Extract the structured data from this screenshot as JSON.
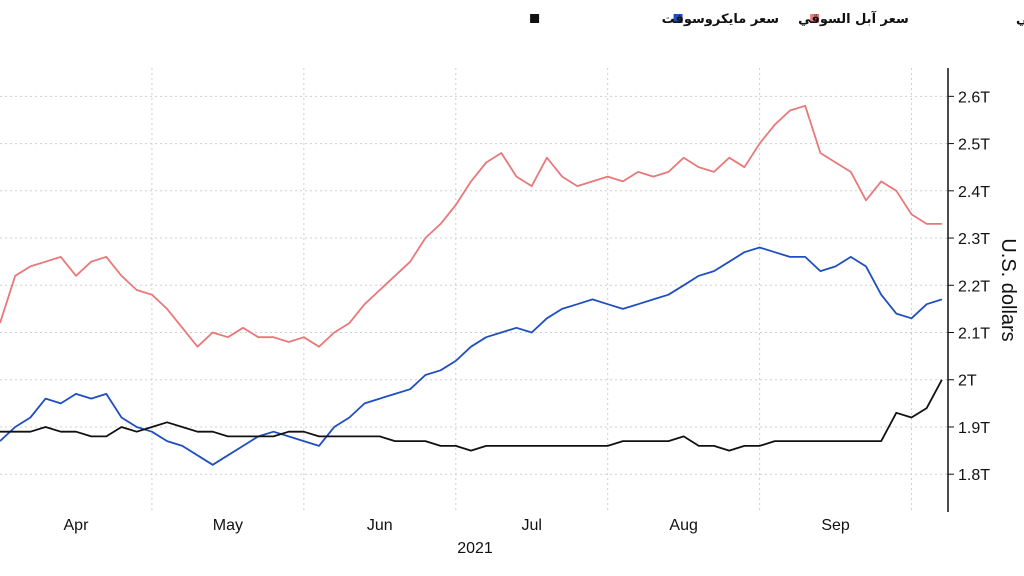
{
  "chart_data": {
    "type": "line",
    "ylabel": "U.S. dollars",
    "year_label": "2021",
    "y_ticks": [
      "1.8T",
      "1.9T",
      "2T",
      "2.1T",
      "2.2T",
      "2.3T",
      "2.4T",
      "2.5T",
      "2.6T"
    ],
    "y_tick_values": [
      1.8,
      1.9,
      2.0,
      2.1,
      2.2,
      2.3,
      2.4,
      2.5,
      2.6
    ],
    "ylim": [
      1.72,
      2.66
    ],
    "x_tick_labels": [
      {
        "label": "Apr",
        "x": 0.5
      },
      {
        "label": "May",
        "x": 1.5
      },
      {
        "label": "Jun",
        "x": 2.5
      },
      {
        "label": "Jul",
        "x": 3.5
      },
      {
        "label": "Aug",
        "x": 4.5
      },
      {
        "label": "Sep",
        "x": 5.5
      }
    ],
    "x_gridlines": [
      1,
      2,
      3,
      4,
      5,
      6
    ],
    "xlim": [
      0,
      6.24
    ],
    "grid": true,
    "legend_position": "top-right",
    "series": [
      {
        "name": "سعر أرامكو السعودية السوقي",
        "color": "#e8797a",
        "x": [
          0,
          0.1,
          0.2,
          0.3,
          0.4,
          0.5,
          0.6,
          0.7,
          0.8,
          0.9,
          1.0,
          1.1,
          1.2,
          1.3,
          1.4,
          1.5,
          1.6,
          1.7,
          1.8,
          1.9,
          2.0,
          2.1,
          2.2,
          2.3,
          2.4,
          2.5,
          2.6,
          2.7,
          2.8,
          2.9,
          3.0,
          3.1,
          3.2,
          3.3,
          3.4,
          3.5,
          3.6,
          3.7,
          3.8,
          3.9,
          4.0,
          4.1,
          4.2,
          4.3,
          4.4,
          4.5,
          4.6,
          4.7,
          4.8,
          4.9,
          5.0,
          5.1,
          5.2,
          5.3,
          5.4,
          5.5,
          5.6,
          5.7,
          5.8,
          5.9,
          6.0,
          6.1,
          6.2
        ],
        "values": [
          2.12,
          2.22,
          2.24,
          2.25,
          2.26,
          2.22,
          2.25,
          2.26,
          2.22,
          2.19,
          2.18,
          2.15,
          2.11,
          2.07,
          2.1,
          2.09,
          2.11,
          2.09,
          2.09,
          2.08,
          2.09,
          2.07,
          2.1,
          2.12,
          2.16,
          2.19,
          2.22,
          2.25,
          2.3,
          2.33,
          2.37,
          2.42,
          2.46,
          2.48,
          2.43,
          2.41,
          2.47,
          2.43,
          2.41,
          2.42,
          2.43,
          2.42,
          2.44,
          2.43,
          2.44,
          2.47,
          2.45,
          2.44,
          2.47,
          2.45,
          2.5,
          2.54,
          2.57,
          2.58,
          2.48,
          2.46,
          2.44,
          2.38,
          2.42,
          2.4,
          2.35,
          2.33,
          2.33
        ]
      },
      {
        "name": "سعر آبل السوقي",
        "color": "#1f4fbf",
        "x": [
          0,
          0.1,
          0.2,
          0.3,
          0.4,
          0.5,
          0.6,
          0.7,
          0.8,
          0.9,
          1.0,
          1.1,
          1.2,
          1.3,
          1.4,
          1.5,
          1.6,
          1.7,
          1.8,
          1.9,
          2.0,
          2.1,
          2.2,
          2.3,
          2.4,
          2.5,
          2.6,
          2.7,
          2.8,
          2.9,
          3.0,
          3.1,
          3.2,
          3.3,
          3.4,
          3.5,
          3.6,
          3.7,
          3.8,
          3.9,
          4.0,
          4.1,
          4.2,
          4.3,
          4.4,
          4.5,
          4.6,
          4.7,
          4.8,
          4.9,
          5.0,
          5.1,
          5.2,
          5.3,
          5.4,
          5.5,
          5.6,
          5.7,
          5.8,
          5.9,
          6.0,
          6.1,
          6.2
        ],
        "values": [
          1.87,
          1.9,
          1.92,
          1.96,
          1.95,
          1.97,
          1.96,
          1.97,
          1.92,
          1.9,
          1.89,
          1.87,
          1.86,
          1.84,
          1.82,
          1.84,
          1.86,
          1.88,
          1.89,
          1.88,
          1.87,
          1.86,
          1.9,
          1.92,
          1.95,
          1.96,
          1.97,
          1.98,
          2.01,
          2.02,
          2.04,
          2.07,
          2.09,
          2.1,
          2.11,
          2.1,
          2.13,
          2.15,
          2.16,
          2.17,
          2.16,
          2.15,
          2.16,
          2.17,
          2.18,
          2.2,
          2.22,
          2.23,
          2.25,
          2.27,
          2.28,
          2.27,
          2.26,
          2.26,
          2.23,
          2.24,
          2.26,
          2.24,
          2.18,
          2.14,
          2.13,
          2.16,
          2.17
        ]
      },
      {
        "name": "سعر مايكروسوفت",
        "color": "#111111",
        "x": [
          0,
          0.1,
          0.2,
          0.3,
          0.4,
          0.5,
          0.6,
          0.7,
          0.8,
          0.9,
          1.0,
          1.1,
          1.2,
          1.3,
          1.4,
          1.5,
          1.6,
          1.7,
          1.8,
          1.9,
          2.0,
          2.1,
          2.2,
          2.3,
          2.4,
          2.5,
          2.6,
          2.7,
          2.8,
          2.9,
          3.0,
          3.1,
          3.2,
          3.3,
          3.4,
          3.5,
          3.6,
          3.7,
          3.8,
          3.9,
          4.0,
          4.1,
          4.2,
          4.3,
          4.4,
          4.5,
          4.6,
          4.7,
          4.8,
          4.9,
          5.0,
          5.1,
          5.2,
          5.3,
          5.4,
          5.5,
          5.6,
          5.7,
          5.8,
          5.9,
          6.0,
          6.1,
          6.2
        ],
        "values": [
          1.89,
          1.89,
          1.89,
          1.9,
          1.89,
          1.89,
          1.88,
          1.88,
          1.9,
          1.89,
          1.9,
          1.91,
          1.9,
          1.89,
          1.89,
          1.88,
          1.88,
          1.88,
          1.88,
          1.89,
          1.89,
          1.88,
          1.88,
          1.88,
          1.88,
          1.88,
          1.87,
          1.87,
          1.87,
          1.86,
          1.86,
          1.85,
          1.86,
          1.86,
          1.86,
          1.86,
          1.86,
          1.86,
          1.86,
          1.86,
          1.86,
          1.87,
          1.87,
          1.87,
          1.87,
          1.88,
          1.86,
          1.86,
          1.85,
          1.86,
          1.86,
          1.87,
          1.87,
          1.87,
          1.87,
          1.87,
          1.87,
          1.87,
          1.87,
          1.93,
          1.92,
          1.94,
          2.0
        ]
      }
    ]
  }
}
